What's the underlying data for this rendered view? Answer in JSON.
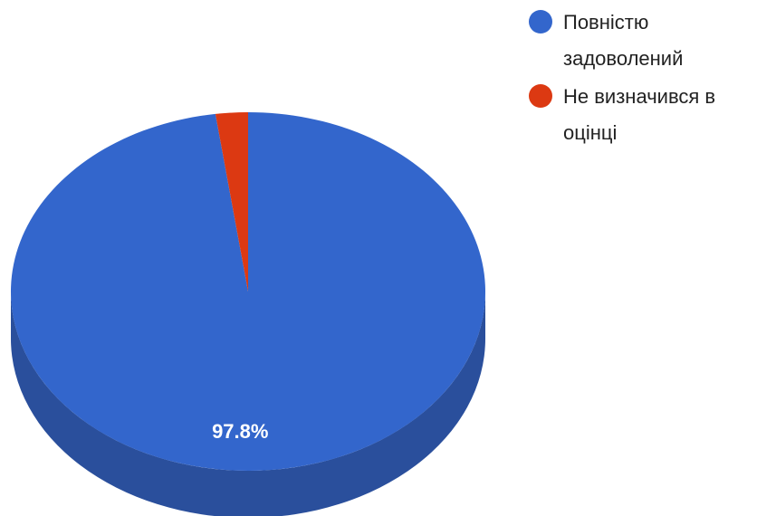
{
  "chart_data": {
    "type": "pie",
    "style": "3d",
    "slices": [
      {
        "label": "Повністю задоволений",
        "legend_lines": [
          "Повністю",
          "задоволений"
        ],
        "value": 97.8,
        "color": "#3366cc",
        "side_color": "#2a4f9c"
      },
      {
        "label": "Не визначився в оцінці",
        "legend_lines": [
          "Не визначився в",
          "оцінці"
        ],
        "value": 2.2,
        "color": "#dc3912",
        "side_color": "#a82c0e"
      }
    ],
    "data_labels": [
      "97.8%",
      ""
    ],
    "legend_position": "right"
  }
}
